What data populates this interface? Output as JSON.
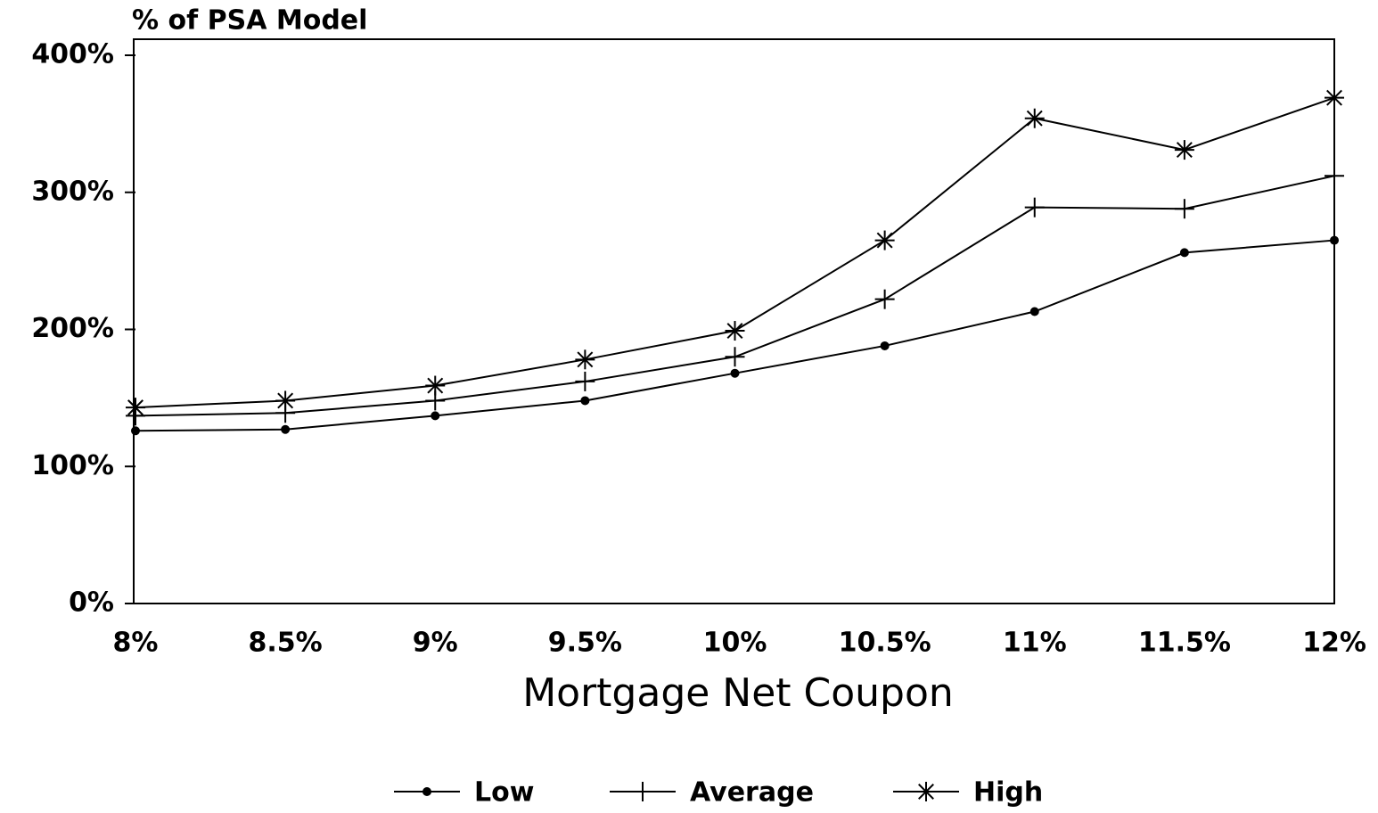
{
  "chart_data": {
    "type": "line",
    "title": "% of PSA Model",
    "xlabel": "Mortgage Net Coupon",
    "categories": [
      "8%",
      "8.5%",
      "9%",
      "9.5%",
      "10%",
      "10.5%",
      "11%",
      "11.5%",
      "12%"
    ],
    "series": [
      {
        "name": "Low",
        "color": "#000000",
        "marker": "dot",
        "values": [
          126,
          127,
          137,
          148,
          168,
          188,
          213,
          256,
          265
        ]
      },
      {
        "name": "Average",
        "color": "#000000",
        "marker": "plus",
        "values": [
          137,
          139,
          148,
          162,
          180,
          222,
          289,
          288,
          312
        ]
      },
      {
        "name": "High",
        "color": "#000000",
        "marker": "asterisk",
        "values": [
          143,
          148,
          159,
          178,
          199,
          265,
          354,
          331,
          369
        ]
      }
    ],
    "ylim": [
      0,
      400
    ],
    "yticks": [
      {
        "value": 0,
        "label": "0%"
      },
      {
        "value": 100,
        "label": "100%"
      },
      {
        "value": 200,
        "label": "200%"
      },
      {
        "value": 300,
        "label": "300%"
      },
      {
        "value": 400,
        "label": "400%"
      }
    ],
    "legend": "bottom"
  }
}
